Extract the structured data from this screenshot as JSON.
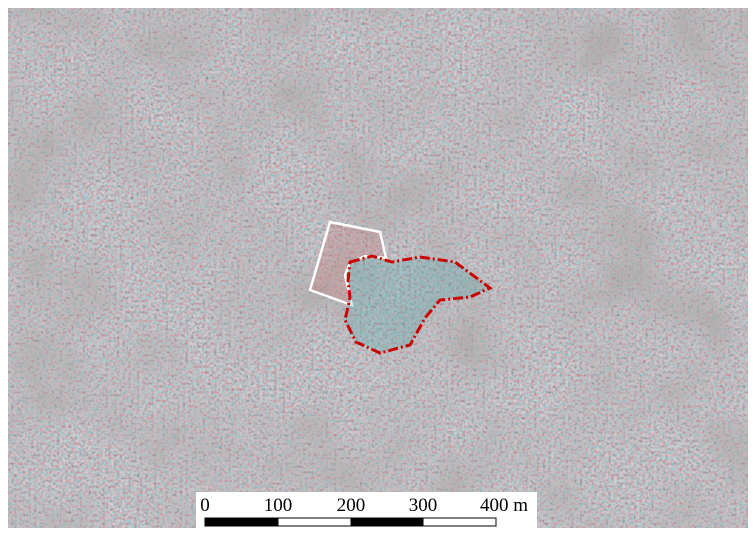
{
  "scale_bar": {
    "labels": [
      "0",
      "100",
      "200",
      "300",
      "400 m"
    ]
  }
}
